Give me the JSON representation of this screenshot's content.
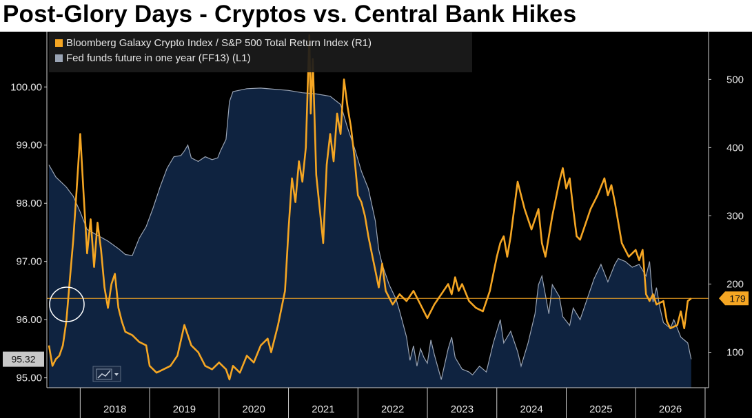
{
  "title": "Post-Glory Days - Cryptos vs. Central Bank Hikes",
  "colors": {
    "background": "#000000",
    "area_fill": "#0f2340",
    "fed_line": "#9aa4b4",
    "crypto_line": "#f5a623",
    "reference_line": "#f5a623"
  },
  "chart_data": {
    "type": "line",
    "x_categories": [
      "2018",
      "2019",
      "2020",
      "2021",
      "2022",
      "2023",
      "2024",
      "2025",
      "2026"
    ],
    "legend": {
      "placement": "top-left",
      "entries": [
        {
          "label": "Bloomberg Galaxy Crypto Index / S&P 500 Total Return Index (R1)",
          "color": "#f5a623"
        },
        {
          "label": "Fed funds future in one year (FF13) (L1)",
          "color": "#9aa4b4"
        }
      ]
    },
    "left_axis": {
      "ticks": [
        "95.00",
        "96.00",
        "97.00",
        "98.00",
        "99.00",
        "100.00"
      ],
      "range": [
        94.83,
        100.95
      ],
      "current_value": "95.32"
    },
    "right_axis": {
      "ticks": [
        "100",
        "200",
        "300",
        "400",
        "500"
      ],
      "range": [
        48,
        570
      ],
      "current_value": "179"
    },
    "grid": false,
    "series": [
      {
        "name": "Fed funds future in one year (FF13) (L1)",
        "axis": "left",
        "style": "area",
        "points": [
          [
            2017.55,
            98.66
          ],
          [
            2017.65,
            98.45
          ],
          [
            2017.8,
            98.28
          ],
          [
            2017.9,
            98.12
          ],
          [
            2018.0,
            97.85
          ],
          [
            2018.1,
            97.55
          ],
          [
            2018.25,
            97.45
          ],
          [
            2018.4,
            97.35
          ],
          [
            2018.55,
            97.22
          ],
          [
            2018.65,
            97.12
          ],
          [
            2018.75,
            97.1
          ],
          [
            2018.85,
            97.4
          ],
          [
            2018.95,
            97.6
          ],
          [
            2019.05,
            97.92
          ],
          [
            2019.15,
            98.28
          ],
          [
            2019.25,
            98.6
          ],
          [
            2019.35,
            98.8
          ],
          [
            2019.45,
            98.82
          ],
          [
            2019.5,
            98.9
          ],
          [
            2019.55,
            99.0
          ],
          [
            2019.6,
            98.78
          ],
          [
            2019.7,
            98.72
          ],
          [
            2019.8,
            98.8
          ],
          [
            2019.9,
            98.75
          ],
          [
            2019.98,
            98.78
          ],
          [
            2020.02,
            98.9
          ],
          [
            2020.1,
            99.1
          ],
          [
            2020.15,
            99.75
          ],
          [
            2020.2,
            99.92
          ],
          [
            2020.4,
            99.97
          ],
          [
            2020.6,
            99.98
          ],
          [
            2020.8,
            99.96
          ],
          [
            2021.0,
            99.94
          ],
          [
            2021.2,
            99.9
          ],
          [
            2021.4,
            99.88
          ],
          [
            2021.6,
            99.84
          ],
          [
            2021.75,
            99.7
          ],
          [
            2021.85,
            99.3
          ],
          [
            2021.95,
            98.95
          ],
          [
            2022.05,
            98.55
          ],
          [
            2022.15,
            98.25
          ],
          [
            2022.25,
            97.7
          ],
          [
            2022.3,
            97.2
          ],
          [
            2022.35,
            96.95
          ],
          [
            2022.45,
            96.6
          ],
          [
            2022.55,
            96.35
          ],
          [
            2022.6,
            96.15
          ],
          [
            2022.7,
            95.7
          ],
          [
            2022.75,
            95.3
          ],
          [
            2022.8,
            95.55
          ],
          [
            2022.85,
            95.2
          ],
          [
            2022.9,
            95.5
          ],
          [
            2022.95,
            95.35
          ],
          [
            2023.0,
            95.25
          ],
          [
            2023.05,
            95.65
          ],
          [
            2023.1,
            95.4
          ],
          [
            2023.2,
            94.97
          ],
          [
            2023.3,
            95.5
          ],
          [
            2023.35,
            95.7
          ],
          [
            2023.4,
            95.35
          ],
          [
            2023.5,
            95.15
          ],
          [
            2023.6,
            95.1
          ],
          [
            2023.65,
            95.05
          ],
          [
            2023.75,
            95.2
          ],
          [
            2023.85,
            95.1
          ],
          [
            2023.95,
            95.6
          ],
          [
            2024.05,
            96.0
          ],
          [
            2024.1,
            95.6
          ],
          [
            2024.2,
            95.8
          ],
          [
            2024.3,
            95.45
          ],
          [
            2024.35,
            95.2
          ],
          [
            2024.45,
            95.6
          ],
          [
            2024.55,
            96.1
          ],
          [
            2024.6,
            96.6
          ],
          [
            2024.65,
            96.75
          ],
          [
            2024.75,
            96.1
          ],
          [
            2024.8,
            96.6
          ],
          [
            2024.9,
            96.4
          ],
          [
            2024.95,
            96.05
          ],
          [
            2025.05,
            95.9
          ],
          [
            2025.1,
            96.2
          ],
          [
            2025.2,
            96.0
          ],
          [
            2025.3,
            96.35
          ],
          [
            2025.4,
            96.7
          ],
          [
            2025.5,
            96.95
          ],
          [
            2025.6,
            96.65
          ],
          [
            2025.7,
            96.95
          ],
          [
            2025.75,
            97.05
          ],
          [
            2025.85,
            97.0
          ],
          [
            2025.95,
            96.9
          ],
          [
            2026.05,
            96.95
          ],
          [
            2026.15,
            96.75
          ],
          [
            2026.2,
            97.0
          ],
          [
            2026.25,
            96.3
          ],
          [
            2026.3,
            96.55
          ],
          [
            2026.35,
            96.2
          ],
          [
            2026.4,
            95.95
          ],
          [
            2026.5,
            95.85
          ],
          [
            2026.55,
            96.0
          ],
          [
            2026.6,
            95.85
          ],
          [
            2026.65,
            95.7
          ],
          [
            2026.75,
            95.6
          ],
          [
            2026.8,
            95.32
          ]
        ]
      },
      {
        "name": "Bloomberg Galaxy Crypto Index / S&P 500 Total Return Index (R1)",
        "axis": "right",
        "points": [
          [
            2017.55,
            110
          ],
          [
            2017.6,
            80
          ],
          [
            2017.65,
            90
          ],
          [
            2017.7,
            95
          ],
          [
            2017.75,
            110
          ],
          [
            2017.8,
            145
          ],
          [
            2017.85,
            205
          ],
          [
            2017.9,
            265
          ],
          [
            2017.95,
            340
          ],
          [
            2018.0,
            420
          ],
          [
            2018.05,
            330
          ],
          [
            2018.1,
            245
          ],
          [
            2018.15,
            295
          ],
          [
            2018.2,
            225
          ],
          [
            2018.25,
            290
          ],
          [
            2018.3,
            250
          ],
          [
            2018.35,
            195
          ],
          [
            2018.4,
            165
          ],
          [
            2018.45,
            200
          ],
          [
            2018.5,
            215
          ],
          [
            2018.55,
            165
          ],
          [
            2018.6,
            145
          ],
          [
            2018.65,
            130
          ],
          [
            2018.75,
            125
          ],
          [
            2018.85,
            115
          ],
          [
            2018.95,
            110
          ],
          [
            2019.0,
            80
          ],
          [
            2019.1,
            70
          ],
          [
            2019.2,
            75
          ],
          [
            2019.3,
            80
          ],
          [
            2019.4,
            95
          ],
          [
            2019.5,
            140
          ],
          [
            2019.6,
            110
          ],
          [
            2019.7,
            100
          ],
          [
            2019.8,
            80
          ],
          [
            2019.9,
            75
          ],
          [
            2020.0,
            85
          ],
          [
            2020.1,
            75
          ],
          [
            2020.15,
            60
          ],
          [
            2020.2,
            80
          ],
          [
            2020.3,
            70
          ],
          [
            2020.4,
            95
          ],
          [
            2020.5,
            85
          ],
          [
            2020.6,
            110
          ],
          [
            2020.7,
            120
          ],
          [
            2020.75,
            100
          ],
          [
            2020.85,
            140
          ],
          [
            2020.95,
            190
          ],
          [
            2021.0,
            280
          ],
          [
            2021.05,
            355
          ],
          [
            2021.1,
            320
          ],
          [
            2021.15,
            380
          ],
          [
            2021.2,
            350
          ],
          [
            2021.25,
            400
          ],
          [
            2021.3,
            565
          ],
          [
            2021.32,
            450
          ],
          [
            2021.35,
            530
          ],
          [
            2021.4,
            360
          ],
          [
            2021.45,
            310
          ],
          [
            2021.5,
            260
          ],
          [
            2021.55,
            375
          ],
          [
            2021.6,
            420
          ],
          [
            2021.65,
            380
          ],
          [
            2021.7,
            450
          ],
          [
            2021.75,
            420
          ],
          [
            2021.8,
            500
          ],
          [
            2021.85,
            460
          ],
          [
            2021.9,
            430
          ],
          [
            2021.95,
            385
          ],
          [
            2022.0,
            330
          ],
          [
            2022.05,
            320
          ],
          [
            2022.1,
            300
          ],
          [
            2022.15,
            270
          ],
          [
            2022.2,
            245
          ],
          [
            2022.25,
            220
          ],
          [
            2022.3,
            195
          ],
          [
            2022.35,
            230
          ],
          [
            2022.4,
            190
          ],
          [
            2022.5,
            170
          ],
          [
            2022.6,
            185
          ],
          [
            2022.7,
            175
          ],
          [
            2022.8,
            190
          ],
          [
            2022.9,
            170
          ],
          [
            2023.0,
            150
          ],
          [
            2023.1,
            170
          ],
          [
            2023.2,
            185
          ],
          [
            2023.3,
            200
          ],
          [
            2023.35,
            185
          ],
          [
            2023.4,
            210
          ],
          [
            2023.45,
            190
          ],
          [
            2023.5,
            200
          ],
          [
            2023.6,
            175
          ],
          [
            2023.7,
            165
          ],
          [
            2023.8,
            160
          ],
          [
            2023.9,
            190
          ],
          [
            2024.0,
            240
          ],
          [
            2024.05,
            260
          ],
          [
            2024.1,
            270
          ],
          [
            2024.15,
            240
          ],
          [
            2024.2,
            270
          ],
          [
            2024.3,
            350
          ],
          [
            2024.35,
            330
          ],
          [
            2024.4,
            310
          ],
          [
            2024.5,
            280
          ],
          [
            2024.6,
            310
          ],
          [
            2024.65,
            260
          ],
          [
            2024.7,
            240
          ],
          [
            2024.8,
            300
          ],
          [
            2024.9,
            350
          ],
          [
            2024.95,
            370
          ],
          [
            2025.0,
            340
          ],
          [
            2025.05,
            355
          ],
          [
            2025.1,
            310
          ],
          [
            2025.15,
            270
          ],
          [
            2025.2,
            265
          ],
          [
            2025.25,
            280
          ],
          [
            2025.35,
            310
          ],
          [
            2025.45,
            330
          ],
          [
            2025.55,
            355
          ],
          [
            2025.6,
            330
          ],
          [
            2025.65,
            345
          ],
          [
            2025.7,
            320
          ],
          [
            2025.8,
            260
          ],
          [
            2025.9,
            240
          ],
          [
            2026.0,
            250
          ],
          [
            2026.05,
            235
          ],
          [
            2026.1,
            250
          ],
          [
            2026.15,
            185
          ],
          [
            2026.2,
            175
          ],
          [
            2026.25,
            185
          ],
          [
            2026.3,
            170
          ],
          [
            2026.4,
            175
          ],
          [
            2026.45,
            145
          ],
          [
            2026.5,
            135
          ],
          [
            2026.6,
            140
          ],
          [
            2026.65,
            160
          ],
          [
            2026.7,
            135
          ],
          [
            2026.75,
            175
          ],
          [
            2026.8,
            179
          ]
        ]
      }
    ],
    "reference_line": {
      "axis": "right",
      "value": 179
    }
  }
}
